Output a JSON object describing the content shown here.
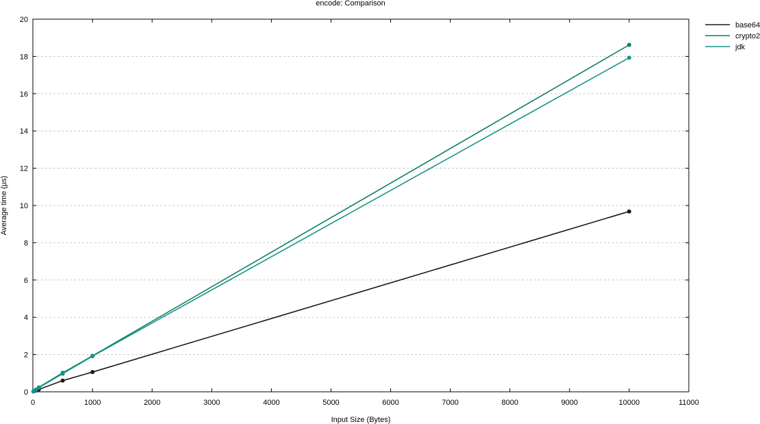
{
  "chart_data": {
    "type": "line",
    "title": "encode: Comparison",
    "xlabel": "Input Size (Bytes)",
    "ylabel": "Average time (µs)",
    "xlim": [
      0,
      11000
    ],
    "ylim": [
      0,
      20
    ],
    "xticks": [
      "0",
      "1000",
      "2000",
      "3000",
      "4000",
      "5000",
      "6000",
      "7000",
      "8000",
      "9000",
      "10000",
      "11000"
    ],
    "yticks": [
      "0",
      "2",
      "4",
      "6",
      "8",
      "10",
      "12",
      "14",
      "16",
      "18",
      "20"
    ],
    "grid": "horizontal dashed",
    "legend_position": "top-right, outside plot",
    "series": [
      {
        "name": "base64",
        "color": "#1a1a1a",
        "points": [
          [
            10,
            0.02
          ],
          [
            50,
            0.07
          ],
          [
            100,
            0.13
          ],
          [
            500,
            0.6
          ],
          [
            1000,
            1.06
          ],
          [
            10000,
            9.68
          ]
        ]
      },
      {
        "name": "crypto2",
        "color": "#0f7f5e",
        "points": [
          [
            10,
            0.03
          ],
          [
            50,
            0.12
          ],
          [
            100,
            0.24
          ],
          [
            500,
            1.02
          ],
          [
            1000,
            1.93
          ],
          [
            10000,
            18.62
          ]
        ]
      },
      {
        "name": "jdk",
        "color": "#16948a",
        "points": [
          [
            10,
            0.03
          ],
          [
            50,
            0.11
          ],
          [
            100,
            0.22
          ],
          [
            500,
            0.97
          ],
          [
            1000,
            1.91
          ],
          [
            10000,
            17.93
          ]
        ]
      }
    ]
  }
}
